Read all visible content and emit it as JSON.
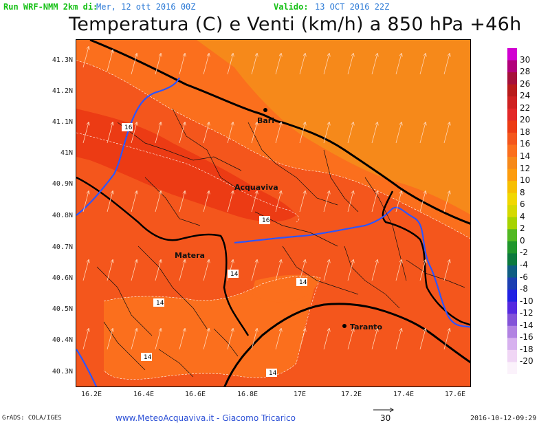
{
  "header": {
    "run_label": "Run WRF-NMM 2km di:",
    "run_date": "Mer, 12 ott 2016 00Z",
    "valid_label": "Valido:",
    "valid_date": "13 OCT 2016 22Z"
  },
  "title": "Temperatura (C) e Venti (km/h) a 850 hPa +46h",
  "axes": {
    "lat_labels": [
      "41.3N",
      "41.2N",
      "41.1N",
      "41N",
      "40.9N",
      "40.8N",
      "40.7N",
      "40.6N",
      "40.5N",
      "40.4N",
      "40.3N"
    ],
    "lon_labels": [
      "16.2E",
      "16.4E",
      "16.6E",
      "16.8E",
      "17E",
      "17.2E",
      "17.4E",
      "17.6E"
    ]
  },
  "cities": [
    "Bari",
    "Acquaviva",
    "Matera",
    "Taranto"
  ],
  "contour_labels": [
    "16",
    "16",
    "14",
    "14",
    "14",
    "14",
    "14"
  ],
  "legend": {
    "values": [
      "30",
      "28",
      "26",
      "24",
      "22",
      "20",
      "18",
      "16",
      "14",
      "12",
      "10",
      "8",
      "6",
      "4",
      "2",
      "0",
      "-2",
      "-4",
      "-6",
      "-8",
      "-10",
      "-12",
      "-14",
      "-16",
      "-18",
      "-20"
    ],
    "colors": [
      "#d100d1",
      "#b2007a",
      "#a6103a",
      "#b91b1b",
      "#cf2121",
      "#e32828",
      "#ec3b14",
      "#f4561c",
      "#fb6f1d",
      "#f6891a",
      "#fd9c0d",
      "#f7bf00",
      "#f1d700",
      "#d5d900",
      "#a6d300",
      "#51b822",
      "#20962c",
      "#0c7a3e",
      "#0f5d83",
      "#1c3fb2",
      "#2121e3",
      "#5529e0",
      "#8353d8",
      "#b182e2",
      "#d7b1ef",
      "#f0d6f5",
      "#fbf2fb"
    ]
  },
  "footer": {
    "grads": "GrADS: COLA/IGES",
    "site": "www.MeteoAcquaviva.it - Giacomo Tricarico",
    "vector_ref": "30",
    "timestamp": "2016-10-12-09:29"
  }
}
